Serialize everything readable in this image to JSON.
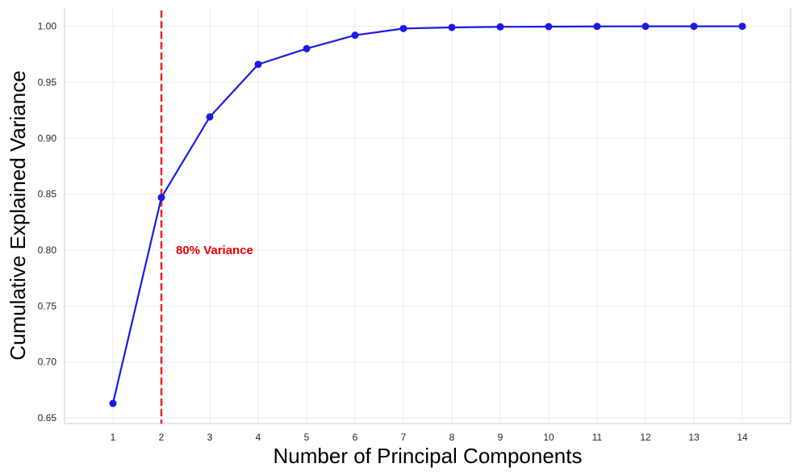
{
  "chart_data": {
    "type": "line",
    "title": "",
    "xlabel": "Number of Principal Components",
    "ylabel": "Cumulative Explained Variance",
    "x": [
      1,
      2,
      3,
      4,
      5,
      6,
      7,
      8,
      9,
      10,
      11,
      12,
      13,
      14
    ],
    "series": [
      {
        "values": [
          0.663,
          0.847,
          0.919,
          0.966,
          0.98,
          0.992,
          0.998,
          0.999,
          0.9995,
          0.9997,
          0.9999,
          0.99995,
          0.99998,
          1.0
        ],
        "color": "#1a1ae6",
        "marker": "circle"
      }
    ],
    "xlim": [
      0.0,
      15.0
    ],
    "ylim": [
      0.645,
      1.017
    ],
    "xticks": [
      "1",
      "2",
      "3",
      "4",
      "5",
      "6",
      "7",
      "8",
      "9",
      "10",
      "11",
      "12",
      "13",
      "14"
    ],
    "yticks": [
      "0.65",
      "0.70",
      "0.75",
      "0.80",
      "0.85",
      "0.90",
      "0.95",
      "1.00"
    ],
    "grid": true,
    "reference_line": {
      "orientation": "vertical",
      "x": 2,
      "style": "dashed",
      "color": "#ee2222"
    },
    "annotation": {
      "text": "80% Variance",
      "x": 2.3,
      "y": 0.8,
      "color": "#e60000"
    }
  }
}
